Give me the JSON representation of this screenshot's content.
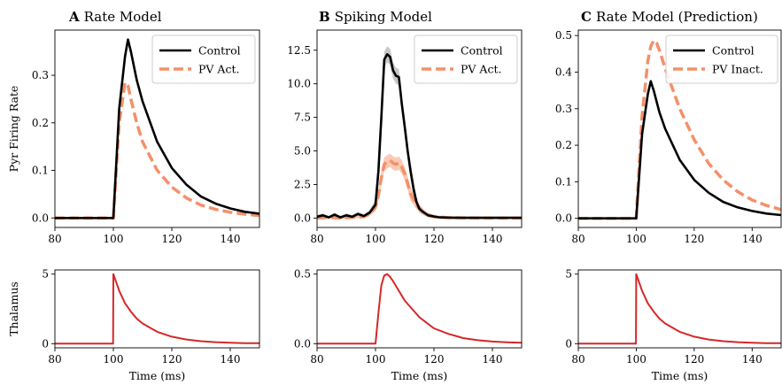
{
  "colors": {
    "control": "#000000",
    "pv": "#f4906a",
    "pv_band": "#f7b89e",
    "control_band": "#b5b5b5",
    "thalamus": "#d62728"
  },
  "chart_data": [
    {
      "panel_letter": "A",
      "title": "Rate Model",
      "type": "line",
      "ylabel": "Pyr Firing Rate",
      "xlabel": "",
      "xlim": [
        80,
        150
      ],
      "ylim": [
        -0.02,
        0.395
      ],
      "xticks": [
        "80",
        "100",
        "120",
        "140"
      ],
      "yticks": [
        "0.0",
        "0.1",
        "0.2",
        "0.3"
      ],
      "legend": {
        "position": "top-right",
        "entries": [
          "Control",
          "PV Act."
        ]
      },
      "series": [
        {
          "name": "Control",
          "style": "solid",
          "role": "control",
          "x": [
            80,
            100,
            102,
            104,
            105,
            106,
            108,
            110,
            115,
            120,
            125,
            130,
            135,
            140,
            145,
            150
          ],
          "y": [
            0,
            0,
            0.23,
            0.34,
            0.375,
            0.35,
            0.29,
            0.245,
            0.16,
            0.105,
            0.07,
            0.045,
            0.03,
            0.02,
            0.013,
            0.009
          ]
        },
        {
          "name": "PV Act.",
          "style": "dashed",
          "role": "pv",
          "x": [
            80,
            100,
            102,
            104,
            105,
            106,
            108,
            110,
            115,
            120,
            125,
            130,
            135,
            140,
            145,
            150
          ],
          "y": [
            0,
            0,
            0.2,
            0.285,
            0.278,
            0.25,
            0.2,
            0.16,
            0.1,
            0.065,
            0.042,
            0.027,
            0.018,
            0.012,
            0.008,
            0.005
          ]
        }
      ]
    },
    {
      "panel_letter": "B",
      "title": "Spiking Model",
      "type": "line",
      "ylabel": "",
      "xlabel": "",
      "xlim": [
        80,
        150
      ],
      "ylim": [
        -0.7,
        14
      ],
      "xticks": [
        "80",
        "100",
        "120",
        "140"
      ],
      "yticks": [
        "0.0",
        "2.5",
        "5.0",
        "7.5",
        "10.0",
        "12.5"
      ],
      "legend": {
        "position": "top-right",
        "entries": [
          "Control",
          "PV Act."
        ]
      },
      "series": [
        {
          "name": "Control",
          "style": "solid",
          "role": "control",
          "band": 0.6,
          "x": [
            80,
            82,
            84,
            86,
            88,
            90,
            92,
            94,
            96,
            98,
            100,
            101,
            102,
            103,
            104,
            105,
            106,
            107,
            108,
            109,
            110,
            111,
            112,
            113,
            114,
            115,
            116,
            118,
            120,
            122,
            125,
            130,
            140,
            150
          ],
          "y": [
            0.1,
            0.2,
            0.05,
            0.25,
            0.05,
            0.2,
            0.1,
            0.3,
            0.15,
            0.4,
            1.0,
            3.5,
            7.5,
            11.8,
            12.2,
            12.0,
            11.0,
            10.6,
            10.5,
            8.5,
            6.8,
            5.0,
            3.5,
            2.2,
            1.2,
            0.7,
            0.5,
            0.2,
            0.12,
            0.05,
            0.03,
            0.02,
            0.02,
            0.02
          ]
        },
        {
          "name": "PV Act.",
          "style": "dashed",
          "role": "pv",
          "band": 0.5,
          "x": [
            80,
            84,
            88,
            92,
            96,
            98,
            100,
            101,
            102,
            103,
            104,
            105,
            106,
            107,
            108,
            109,
            110,
            111,
            112,
            114,
            116,
            118,
            120,
            125,
            130,
            140,
            150
          ],
          "y": [
            0.0,
            0.05,
            0.0,
            0.05,
            0.1,
            0.3,
            0.8,
            1.7,
            3.0,
            4.0,
            4.2,
            4.3,
            4.1,
            4.0,
            4.1,
            3.8,
            3.3,
            2.6,
            1.8,
            1.0,
            0.5,
            0.25,
            0.1,
            0.03,
            0.02,
            0.0,
            0.0
          ]
        }
      ]
    },
    {
      "panel_letter": "C",
      "title": "Rate Model (Prediction)",
      "type": "line",
      "ylabel": "",
      "xlabel": "",
      "xlim": [
        80,
        150
      ],
      "ylim": [
        -0.025,
        0.515
      ],
      "xticks": [
        "80",
        "100",
        "120",
        "140"
      ],
      "yticks": [
        "0.0",
        "0.1",
        "0.2",
        "0.3",
        "0.4",
        "0.5"
      ],
      "legend": {
        "position": "top-right",
        "entries": [
          "Control",
          "PV Inact."
        ]
      },
      "series": [
        {
          "name": "Control",
          "style": "solid",
          "role": "control",
          "x": [
            80,
            100,
            102,
            104,
            105,
            106,
            108,
            110,
            115,
            120,
            125,
            130,
            135,
            140,
            145,
            150
          ],
          "y": [
            0,
            0,
            0.23,
            0.34,
            0.375,
            0.35,
            0.29,
            0.245,
            0.16,
            0.105,
            0.07,
            0.045,
            0.03,
            0.02,
            0.013,
            0.009
          ]
        },
        {
          "name": "PV Inact.",
          "style": "dashed",
          "role": "pv",
          "x": [
            80,
            100,
            102,
            104,
            105,
            106,
            107,
            108,
            110,
            115,
            120,
            125,
            130,
            135,
            140,
            145,
            150
          ],
          "y": [
            0,
            0,
            0.28,
            0.43,
            0.47,
            0.487,
            0.48,
            0.46,
            0.41,
            0.3,
            0.215,
            0.15,
            0.105,
            0.073,
            0.05,
            0.035,
            0.024
          ]
        }
      ]
    },
    {
      "panel_letter": "",
      "title": "",
      "type": "line",
      "ylabel": "Thalamus",
      "xlabel": "Time (ms)",
      "xlim": [
        80,
        150
      ],
      "ylim": [
        -0.3,
        5.3
      ],
      "xticks": [
        "80",
        "100",
        "120",
        "140"
      ],
      "yticks": [
        "0",
        "5"
      ],
      "series": [
        {
          "name": "",
          "style": "solid",
          "role": "thalamus",
          "x": [
            80,
            99.9,
            100,
            102,
            104,
            106,
            108,
            110,
            115,
            120,
            125,
            130,
            135,
            140,
            145,
            150
          ],
          "y": [
            0,
            0,
            5.0,
            3.8,
            2.9,
            2.3,
            1.8,
            1.45,
            0.85,
            0.5,
            0.3,
            0.18,
            0.11,
            0.07,
            0.04,
            0.03
          ]
        }
      ]
    },
    {
      "panel_letter": "",
      "title": "",
      "type": "line",
      "ylabel": "",
      "xlabel": "Time (ms)",
      "xlim": [
        80,
        150
      ],
      "ylim": [
        -0.03,
        0.53
      ],
      "xticks": [
        "80",
        "100",
        "120",
        "140"
      ],
      "yticks": [
        "0.0",
        "0.5"
      ],
      "series": [
        {
          "name": "",
          "style": "solid",
          "role": "thalamus",
          "x": [
            80,
            100,
            101,
            102,
            103,
            104,
            105,
            106,
            108,
            110,
            115,
            120,
            125,
            130,
            135,
            140,
            145,
            150
          ],
          "y": [
            0,
            0,
            0.22,
            0.42,
            0.49,
            0.5,
            0.48,
            0.45,
            0.38,
            0.31,
            0.19,
            0.11,
            0.07,
            0.04,
            0.025,
            0.015,
            0.01,
            0.006
          ]
        }
      ]
    },
    {
      "panel_letter": "",
      "title": "",
      "type": "line",
      "ylabel": "",
      "xlabel": "Time (ms)",
      "xlim": [
        80,
        150
      ],
      "ylim": [
        -0.3,
        5.3
      ],
      "xticks": [
        "80",
        "100",
        "120",
        "140"
      ],
      "yticks": [
        "0",
        "5"
      ],
      "series": [
        {
          "name": "",
          "style": "solid",
          "role": "thalamus",
          "x": [
            80,
            99.9,
            100,
            102,
            104,
            106,
            108,
            110,
            115,
            120,
            125,
            130,
            135,
            140,
            145,
            150
          ],
          "y": [
            0,
            0,
            5.0,
            3.8,
            2.9,
            2.3,
            1.8,
            1.45,
            0.85,
            0.5,
            0.3,
            0.18,
            0.11,
            0.07,
            0.04,
            0.03
          ]
        }
      ]
    }
  ]
}
